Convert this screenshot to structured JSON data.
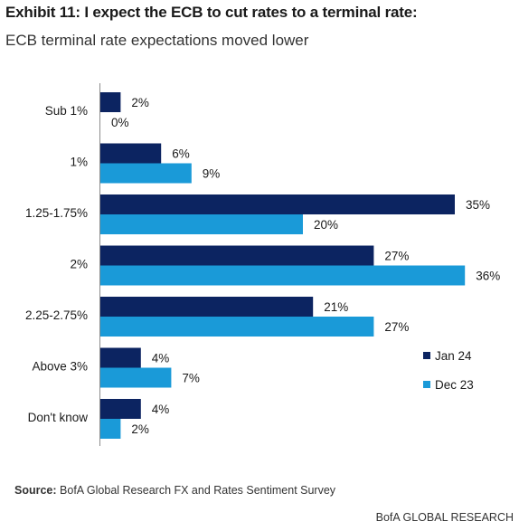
{
  "title": "Exhibit 11: I expect the ECB to cut rates to a terminal rate:",
  "subtitle": "ECB terminal rate expectations moved lower",
  "source_label": "Source:",
  "source_text": "BofA Global Research FX and Rates Sentiment Survey",
  "footer": "BofA GLOBAL RESEARCH",
  "chart_data": {
    "type": "bar",
    "orientation": "horizontal",
    "categories": [
      "Sub 1%",
      "1%",
      "1.25-1.75%",
      "2%",
      "2.25-2.75%",
      "Above 3%",
      "Don't know"
    ],
    "series": [
      {
        "name": "Jan 24",
        "color": "#0c2461",
        "values": [
          2,
          6,
          35,
          27,
          21,
          4,
          4
        ]
      },
      {
        "name": "Dec 23",
        "color": "#1a9ad8",
        "values": [
          0,
          9,
          20,
          36,
          27,
          7,
          2
        ]
      }
    ],
    "value_suffix": "%",
    "xlim": [
      0,
      40
    ],
    "grid": false,
    "legend_position": "right"
  }
}
